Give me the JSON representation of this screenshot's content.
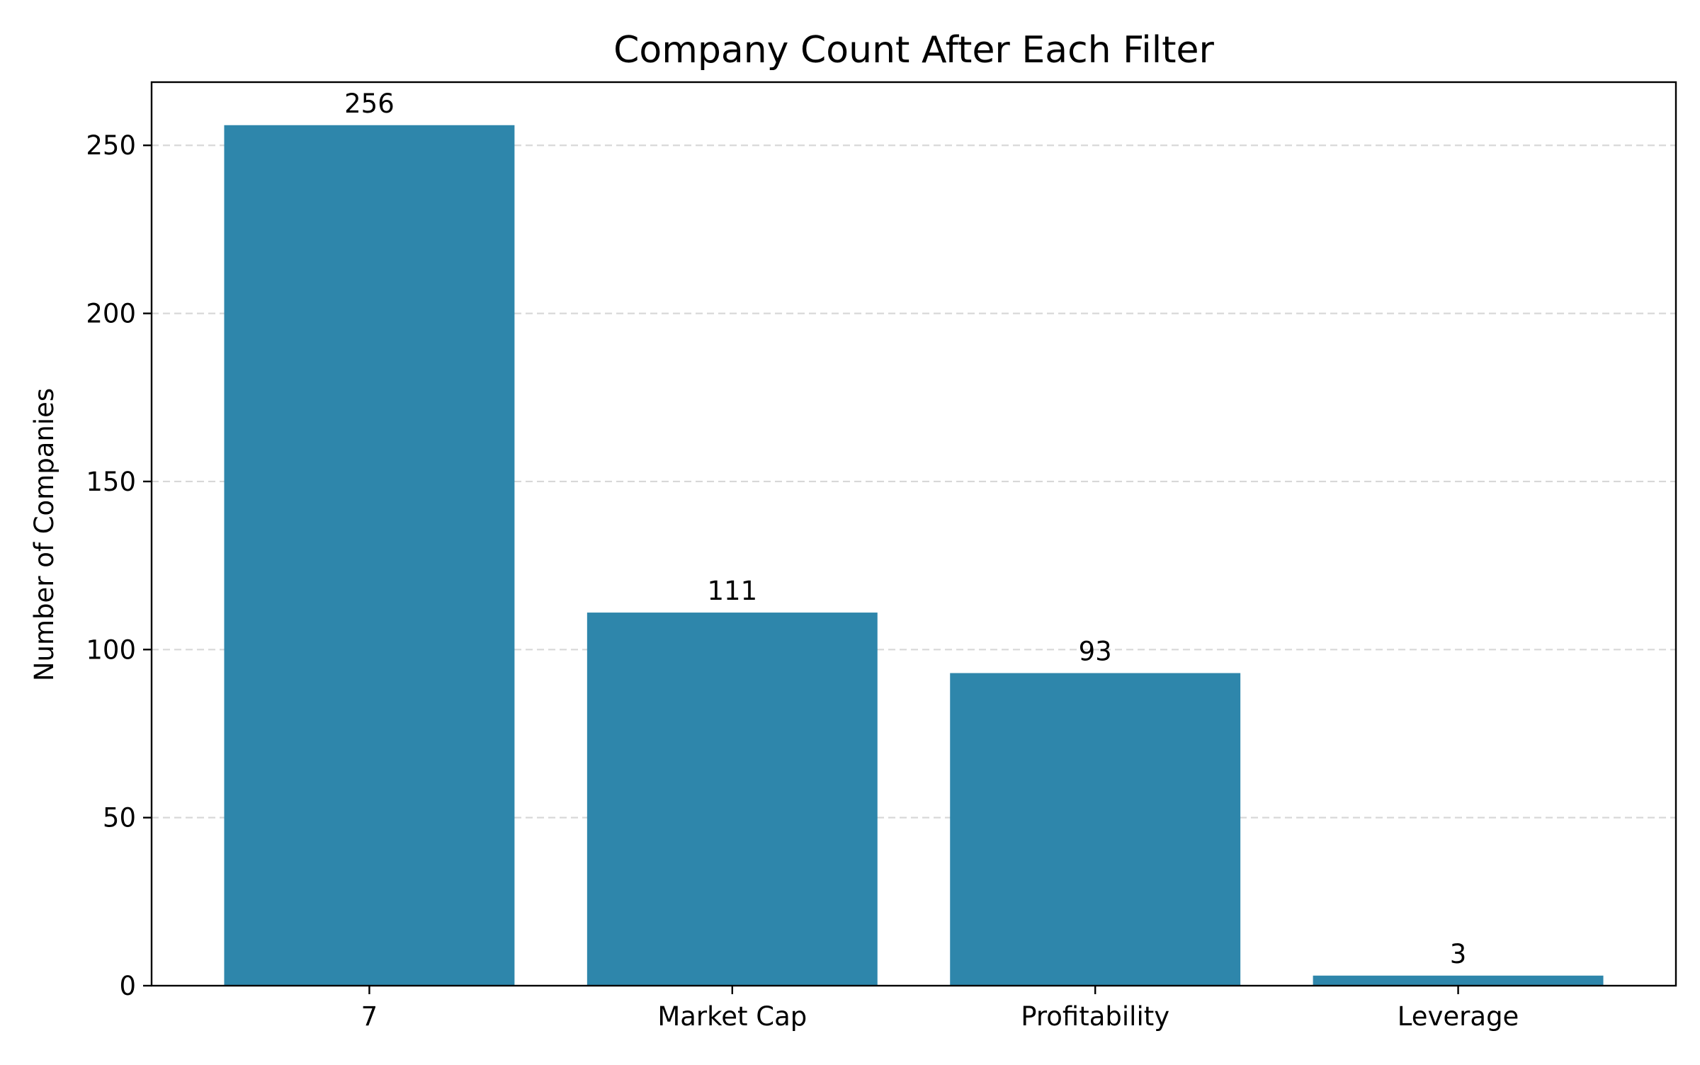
{
  "chart_data": {
    "type": "bar",
    "title": "Company Count After Each Filter",
    "xlabel": "",
    "ylabel": "Number of Companies",
    "categories": [
      "7",
      "Market Cap",
      "Profitability",
      "Leverage"
    ],
    "values": [
      256,
      111,
      93,
      3
    ],
    "data_labels": [
      "256",
      "111",
      "93",
      "3"
    ],
    "ylim": [
      0,
      268.8
    ],
    "yticks": [
      0,
      50,
      100,
      150,
      200,
      250
    ],
    "ytick_labels": [
      "0",
      "50",
      "100",
      "150",
      "200",
      "250"
    ],
    "grid": "y-dashed",
    "bar_color": "#2e86ab"
  }
}
